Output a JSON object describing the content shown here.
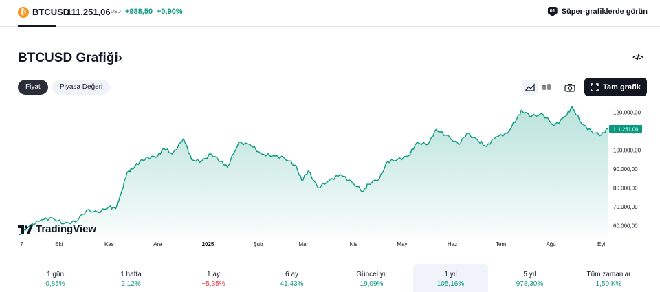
{
  "ticker": {
    "icon": "bitcoin-icon",
    "symbol": "BTCUSD",
    "price": "111.251,06",
    "currency": "USD",
    "change": "+988,50",
    "change_percent": "+0,90%",
    "up_color": "#089981",
    "down_color": "#f23645"
  },
  "super_charts_link": "Süper-grafiklerde görün",
  "title": "BTCUSD Grafiği›",
  "chart_tabs": [
    "Fiyat",
    "Piyasa Değeri"
  ],
  "toolbar": {
    "full_chart": "Tam grafik",
    "icons": [
      "area-chart-icon",
      "candles-icon",
      "camera-icon",
      "fullscreen-icon",
      "embed-code-icon"
    ]
  },
  "watermark": "TradingView",
  "chart_data": {
    "type": "area",
    "series": [
      {
        "color": "#089981",
        "x": [
          "2024-09-06",
          "2024-09-13",
          "2024-09-20",
          "2024-09-27",
          "2024-10-04",
          "2024-10-11",
          "2024-10-18",
          "2024-10-25",
          "2024-11-01",
          "2024-11-05",
          "2024-11-08",
          "2024-11-12",
          "2024-11-15",
          "2024-11-20",
          "2024-11-25",
          "2024-12-01",
          "2024-12-05",
          "2024-12-10",
          "2024-12-17",
          "2024-12-22",
          "2024-12-28",
          "2025-01-03",
          "2025-01-09",
          "2025-01-13",
          "2025-01-20",
          "2025-01-27",
          "2025-02-03",
          "2025-02-10",
          "2025-02-17",
          "2025-02-24",
          "2025-02-28",
          "2025-03-04",
          "2025-03-10",
          "2025-03-17",
          "2025-03-24",
          "2025-03-31",
          "2025-04-07",
          "2025-04-10",
          "2025-04-17",
          "2025-04-22",
          "2025-04-28",
          "2025-05-05",
          "2025-05-10",
          "2025-05-17",
          "2025-05-22",
          "2025-05-28",
          "2025-06-05",
          "2025-06-10",
          "2025-06-17",
          "2025-06-22",
          "2025-06-28",
          "2025-07-05",
          "2025-07-11",
          "2025-07-14",
          "2025-07-20",
          "2025-07-27",
          "2025-08-03",
          "2025-08-10",
          "2025-08-14",
          "2025-08-20",
          "2025-08-26",
          "2025-09-01",
          "2025-09-05"
        ],
        "y": [
          55000,
          60000,
          63000,
          64000,
          61000,
          62000,
          68000,
          67000,
          70000,
          69000,
          76000,
          88000,
          90000,
          94000,
          96000,
          97000,
          101000,
          98000,
          106000,
          95000,
          94000,
          98000,
          94000,
          91000,
          104000,
          103000,
          98000,
          97000,
          96000,
          92000,
          84000,
          89000,
          80000,
          84000,
          87000,
          83000,
          78000,
          82000,
          85000,
          94000,
          95000,
          97000,
          104000,
          103000,
          111000,
          108000,
          103000,
          109000,
          105000,
          102000,
          107000,
          109000,
          117000,
          121000,
          118000,
          119000,
          113000,
          118000,
          123000,
          114000,
          110000,
          108000,
          111251
        ]
      }
    ],
    "ylim": [
      55000,
      125000
    ],
    "y_ticks": [
      "60.000,00",
      "70.000,00",
      "80.000,00",
      "90.000,00",
      "100.000,00",
      "110.000,00",
      "120.000,00"
    ],
    "x_ticks": [
      "7",
      "Eki",
      "Kas",
      "Ara",
      "2025",
      "Şub",
      "Mar",
      "Nis",
      "May",
      "Haz",
      "Tem",
      "Ağu",
      "Eyl"
    ],
    "last_value_label": "111.251,06",
    "grid": false
  },
  "performance": [
    {
      "label": "1 gün",
      "value": "0,85%",
      "dir": "up"
    },
    {
      "label": "1 hafta",
      "value": "2,12%",
      "dir": "up"
    },
    {
      "label": "1 ay",
      "value": "−5,35%",
      "dir": "down"
    },
    {
      "label": "6 ay",
      "value": "41,43%",
      "dir": "up"
    },
    {
      "label": "Güncel yıl",
      "value": "19,09%",
      "dir": "up"
    },
    {
      "label": "1 yıl",
      "value": "105,16%",
      "dir": "up",
      "selected": true
    },
    {
      "label": "5 yıl",
      "value": "978,30%",
      "dir": "up"
    },
    {
      "label": "Tüm zamanlar",
      "value": "1,50 K%",
      "dir": "up"
    }
  ]
}
